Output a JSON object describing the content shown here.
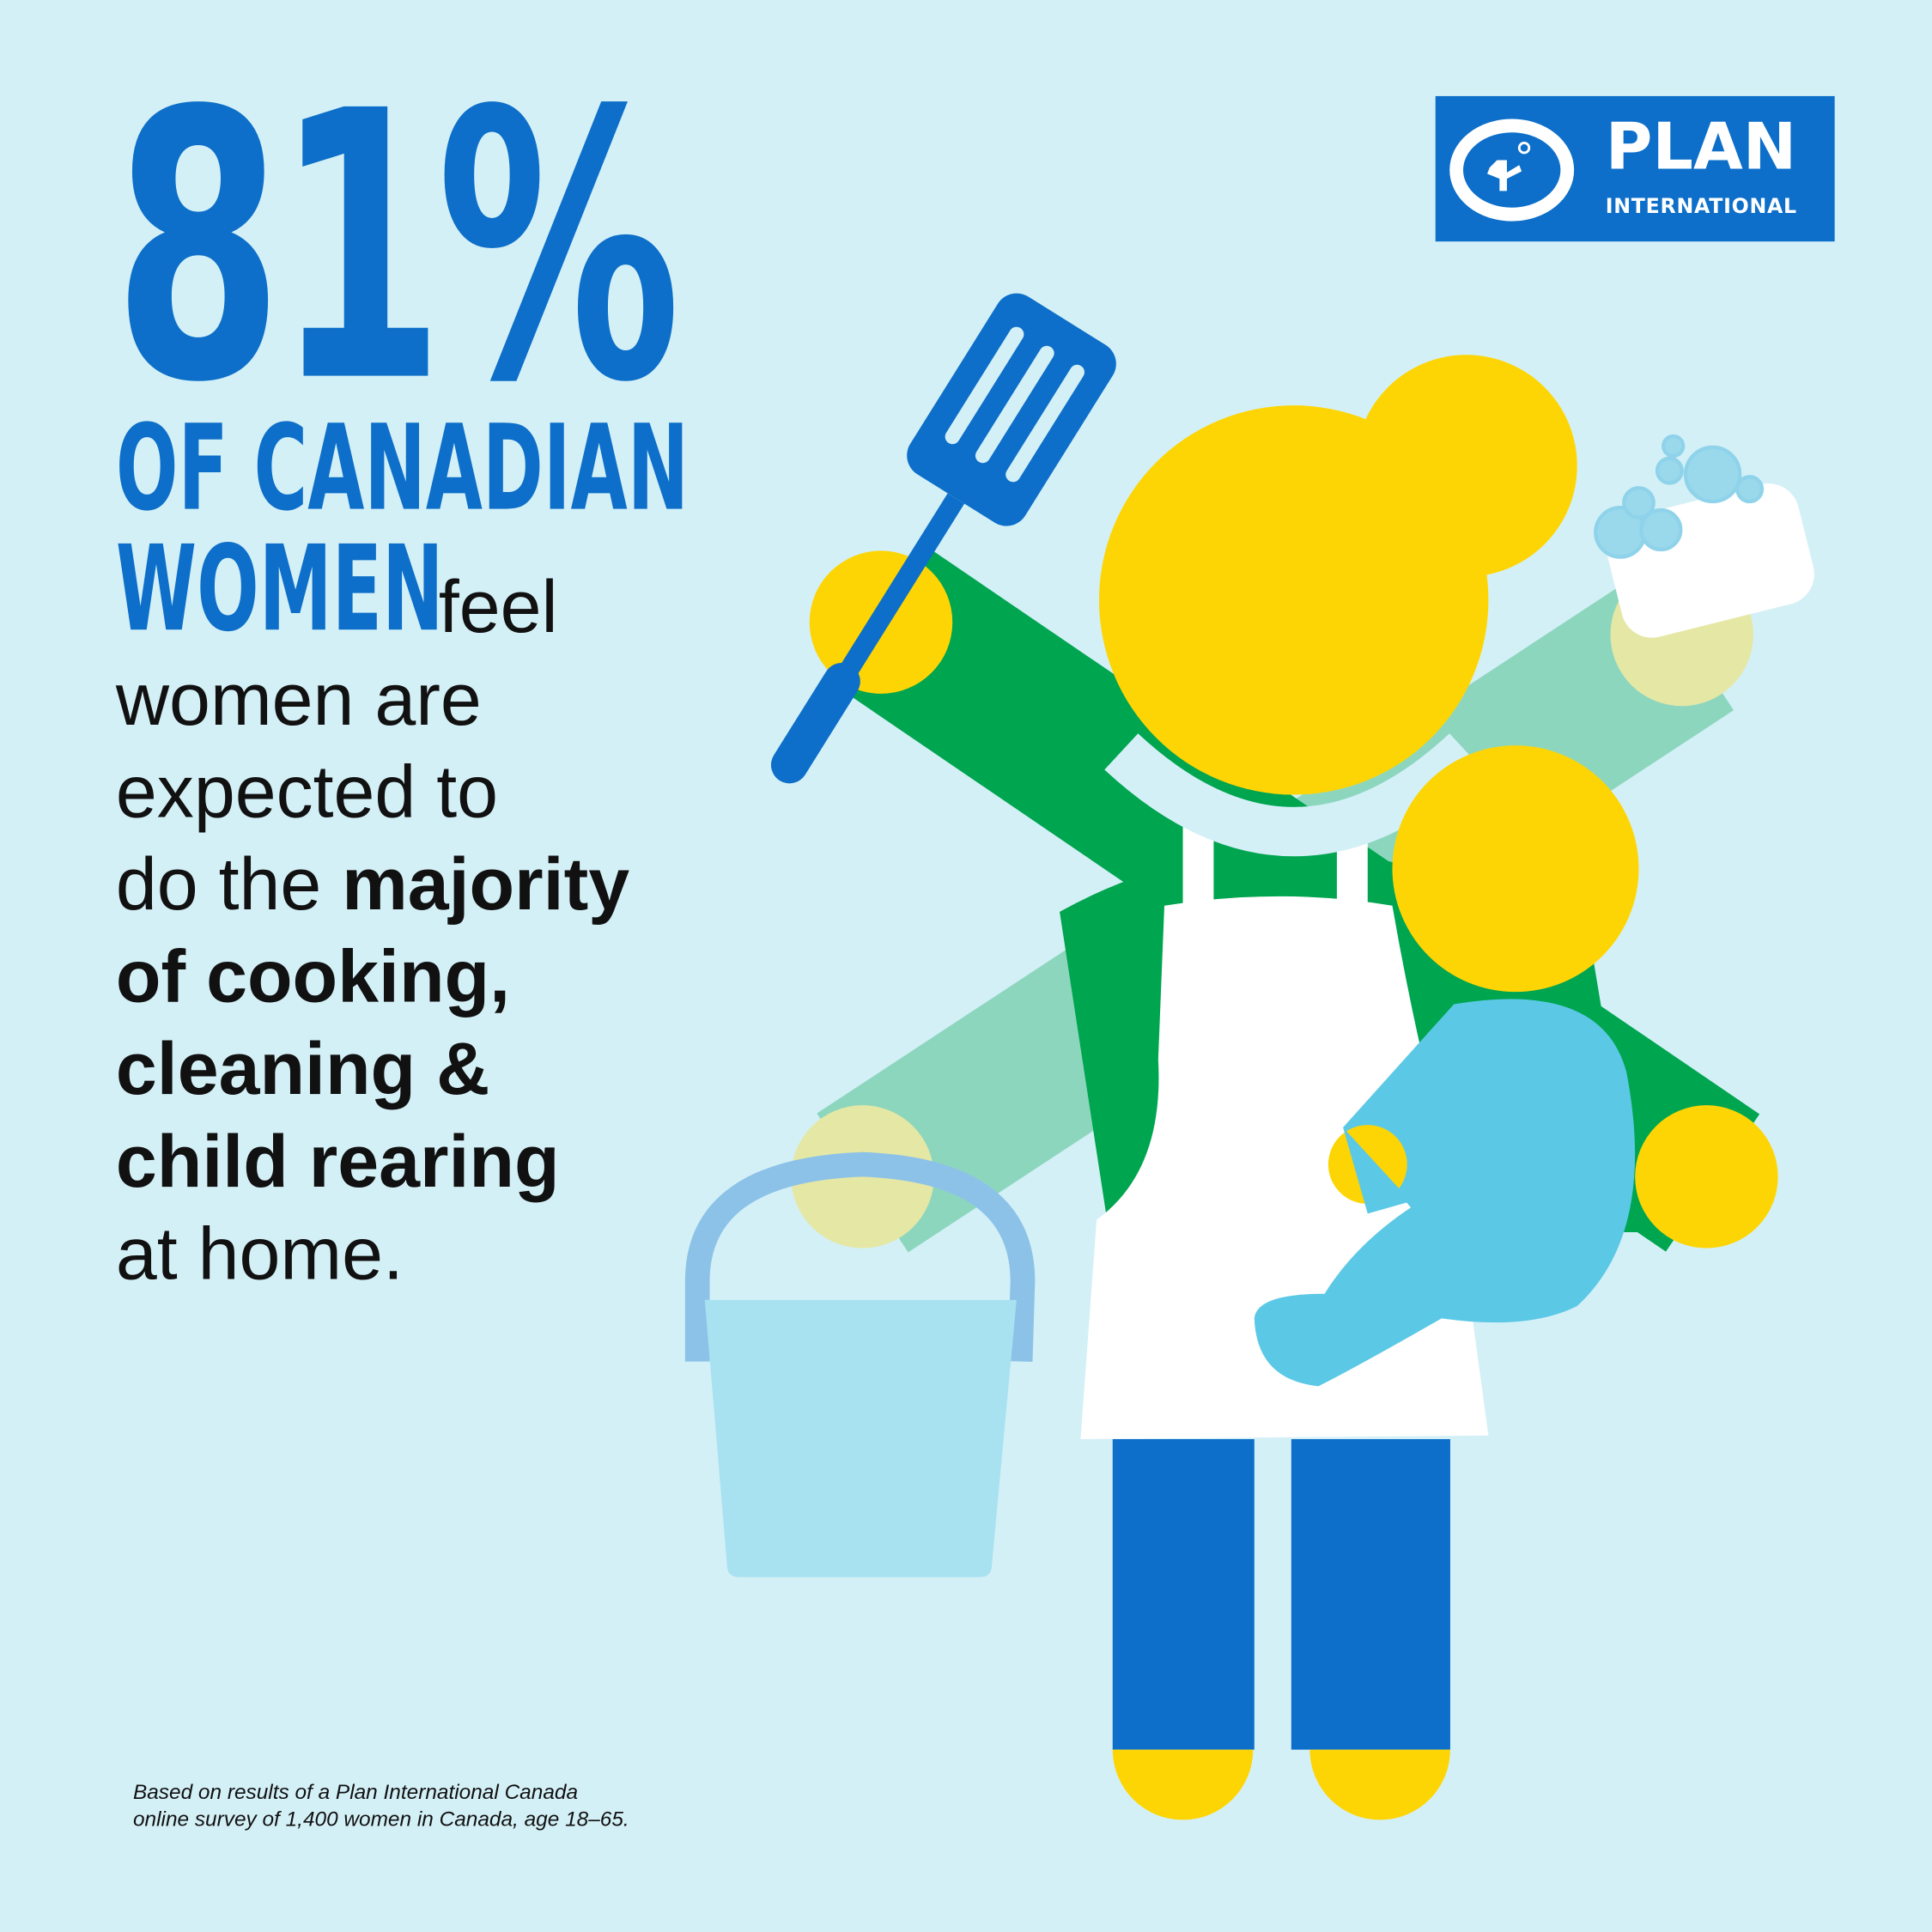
{
  "headline": {
    "stat": "81%",
    "line1": "OF CANADIAN",
    "line2": "WOMEN",
    "feel": "feel",
    "l3": "women are",
    "l4": "expected to",
    "l5a": "do the ",
    "l5b": "majority",
    "l6": "of cooking,",
    "l7": "cleaning &",
    "l8": "child rearing",
    "l9": "at home."
  },
  "footnote": {
    "line1": "Based on results of a Plan International Canada",
    "line2": "online survey of 1,400 women in Canada, age 18–65."
  },
  "logo": {
    "name": "PLAN",
    "sub": "INTERNATIONAL"
  },
  "colors": {
    "background": "#d4f0f7",
    "brand_blue": "#0d6fc9",
    "yellow": "#fdd504",
    "green": "#00a550",
    "light_green": "#8dd6be",
    "baby_blue": "#5bc8e6"
  }
}
